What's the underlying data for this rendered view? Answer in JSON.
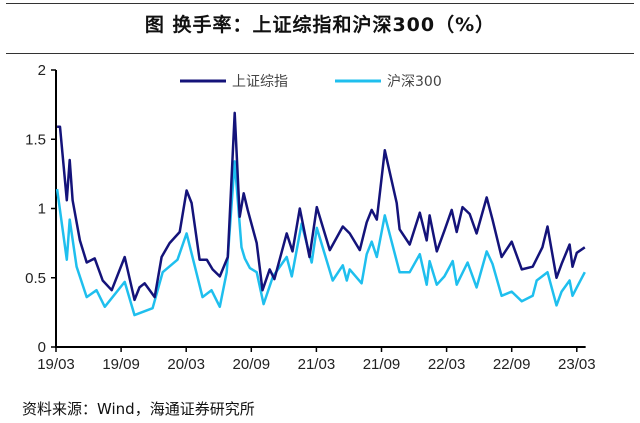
{
  "title": "图  换手率：上证综指和沪深300（%）",
  "source": "资料来源：Wind，海通证券研究所",
  "chart_data": {
    "type": "line",
    "title": "图  换手率：上证综指和沪深300（%）",
    "xlabel": "",
    "ylabel": "",
    "ylim": [
      0,
      2
    ],
    "yticks": [
      "0",
      "0.5",
      "1",
      "1.5",
      "2"
    ],
    "xlim": [
      "2019-03-01",
      "2023-04-01"
    ],
    "xticks": [
      {
        "date": "2019-03-01",
        "label": "19/03"
      },
      {
        "date": "2019-09-01",
        "label": "19/09"
      },
      {
        "date": "2020-03-01",
        "label": "20/03"
      },
      {
        "date": "2020-09-01",
        "label": "20/09"
      },
      {
        "date": "2021-03-01",
        "label": "21/03"
      },
      {
        "date": "2021-09-01",
        "label": "21/09"
      },
      {
        "date": "2022-03-01",
        "label": "22/03"
      },
      {
        "date": "2022-09-01",
        "label": "22/09"
      },
      {
        "date": "2023-03-01",
        "label": "23/03"
      }
    ],
    "grid": false,
    "legend": "top",
    "series": [
      {
        "name": "上证综指",
        "color": "#14137a",
        "points": [
          [
            "2019-03-04",
            1.59
          ],
          [
            "2019-03-12",
            1.59
          ],
          [
            "2019-04-01",
            1.06
          ],
          [
            "2019-04-09",
            1.35
          ],
          [
            "2019-04-17",
            1.06
          ],
          [
            "2019-05-07",
            0.77
          ],
          [
            "2019-05-26",
            0.61
          ],
          [
            "2019-06-18",
            0.64
          ],
          [
            "2019-07-10",
            0.48
          ],
          [
            "2019-08-05",
            0.41
          ],
          [
            "2019-09-11",
            0.65
          ],
          [
            "2019-10-08",
            0.34
          ],
          [
            "2019-10-22",
            0.43
          ],
          [
            "2019-11-06",
            0.46
          ],
          [
            "2019-12-04",
            0.36
          ],
          [
            "2019-12-23",
            0.65
          ],
          [
            "2020-01-15",
            0.75
          ],
          [
            "2020-02-13",
            0.83
          ],
          [
            "2020-03-02",
            1.13
          ],
          [
            "2020-03-16",
            1.04
          ],
          [
            "2020-04-08",
            0.63
          ],
          [
            "2020-04-28",
            0.63
          ],
          [
            "2020-05-14",
            0.56
          ],
          [
            "2020-06-04",
            0.51
          ],
          [
            "2020-06-26",
            0.65
          ],
          [
            "2020-07-15",
            1.69
          ],
          [
            "2020-07-29",
            0.94
          ],
          [
            "2020-08-10",
            1.11
          ],
          [
            "2020-08-21",
            0.99
          ],
          [
            "2020-09-16",
            0.75
          ],
          [
            "2020-10-02",
            0.41
          ],
          [
            "2020-10-22",
            0.56
          ],
          [
            "2020-11-05",
            0.49
          ],
          [
            "2020-12-09",
            0.82
          ],
          [
            "2020-12-25",
            0.69
          ],
          [
            "2021-01-15",
            1.0
          ],
          [
            "2021-02-12",
            0.65
          ],
          [
            "2021-03-02",
            1.01
          ],
          [
            "2021-04-08",
            0.7
          ],
          [
            "2021-05-14",
            0.87
          ],
          [
            "2021-06-03",
            0.82
          ],
          [
            "2021-07-01",
            0.7
          ],
          [
            "2021-07-20",
            0.9
          ],
          [
            "2021-08-04",
            0.99
          ],
          [
            "2021-08-18",
            0.92
          ],
          [
            "2021-09-10",
            1.42
          ],
          [
            "2021-10-13",
            1.04
          ],
          [
            "2021-10-21",
            0.85
          ],
          [
            "2021-11-19",
            0.74
          ],
          [
            "2021-12-17",
            0.97
          ],
          [
            "2022-01-06",
            0.77
          ],
          [
            "2022-01-14",
            0.95
          ],
          [
            "2022-02-04",
            0.69
          ],
          [
            "2022-02-25",
            0.84
          ],
          [
            "2022-03-15",
            0.99
          ],
          [
            "2022-03-29",
            0.83
          ],
          [
            "2022-04-15",
            1.01
          ],
          [
            "2022-05-05",
            0.96
          ],
          [
            "2022-05-24",
            0.82
          ],
          [
            "2022-06-22",
            1.08
          ],
          [
            "2022-07-08",
            0.92
          ],
          [
            "2022-08-03",
            0.65
          ],
          [
            "2022-09-01",
            0.76
          ],
          [
            "2022-09-29",
            0.56
          ],
          [
            "2022-10-29",
            0.58
          ],
          [
            "2022-11-26",
            0.72
          ],
          [
            "2022-12-10",
            0.87
          ],
          [
            "2023-01-05",
            0.5
          ],
          [
            "2023-01-19",
            0.6
          ],
          [
            "2023-02-11",
            0.74
          ],
          [
            "2023-02-19",
            0.58
          ],
          [
            "2023-03-01",
            0.68
          ],
          [
            "2023-03-23",
            0.72
          ]
        ]
      },
      {
        "name": "沪深300",
        "color": "#1fbfee",
        "points": [
          [
            "2019-03-04",
            1.14
          ],
          [
            "2019-04-01",
            0.63
          ],
          [
            "2019-04-09",
            0.92
          ],
          [
            "2019-04-28",
            0.58
          ],
          [
            "2019-05-26",
            0.36
          ],
          [
            "2019-06-23",
            0.41
          ],
          [
            "2019-07-16",
            0.29
          ],
          [
            "2019-09-11",
            0.47
          ],
          [
            "2019-10-08",
            0.23
          ],
          [
            "2019-11-28",
            0.28
          ],
          [
            "2019-12-26",
            0.54
          ],
          [
            "2020-02-07",
            0.63
          ],
          [
            "2020-03-02",
            0.82
          ],
          [
            "2020-04-16",
            0.36
          ],
          [
            "2020-05-11",
            0.41
          ],
          [
            "2020-06-04",
            0.29
          ],
          [
            "2020-06-23",
            0.54
          ],
          [
            "2020-07-15",
            1.34
          ],
          [
            "2020-08-04",
            0.72
          ],
          [
            "2020-08-13",
            0.64
          ],
          [
            "2020-08-27",
            0.57
          ],
          [
            "2020-09-16",
            0.54
          ],
          [
            "2020-10-05",
            0.31
          ],
          [
            "2020-11-01",
            0.51
          ],
          [
            "2020-12-09",
            0.65
          ],
          [
            "2020-12-23",
            0.51
          ],
          [
            "2021-01-20",
            0.89
          ],
          [
            "2021-02-18",
            0.61
          ],
          [
            "2021-03-02",
            0.86
          ],
          [
            "2021-04-16",
            0.48
          ],
          [
            "2021-05-14",
            0.59
          ],
          [
            "2021-05-25",
            0.48
          ],
          [
            "2021-06-03",
            0.56
          ],
          [
            "2021-07-06",
            0.46
          ],
          [
            "2021-07-20",
            0.67
          ],
          [
            "2021-08-04",
            0.76
          ],
          [
            "2021-08-18",
            0.65
          ],
          [
            "2021-09-10",
            0.95
          ],
          [
            "2021-10-21",
            0.54
          ],
          [
            "2021-11-19",
            0.54
          ],
          [
            "2021-12-17",
            0.67
          ],
          [
            "2022-01-06",
            0.45
          ],
          [
            "2022-01-14",
            0.62
          ],
          [
            "2022-02-04",
            0.45
          ],
          [
            "2022-02-25",
            0.51
          ],
          [
            "2022-03-18",
            0.62
          ],
          [
            "2022-03-29",
            0.45
          ],
          [
            "2022-04-29",
            0.61
          ],
          [
            "2022-05-24",
            0.43
          ],
          [
            "2022-06-22",
            0.69
          ],
          [
            "2022-07-08",
            0.6
          ],
          [
            "2022-08-03",
            0.37
          ],
          [
            "2022-09-01",
            0.4
          ],
          [
            "2022-09-29",
            0.33
          ],
          [
            "2022-10-29",
            0.37
          ],
          [
            "2022-11-10",
            0.48
          ],
          [
            "2022-12-10",
            0.54
          ],
          [
            "2023-01-05",
            0.3
          ],
          [
            "2023-01-19",
            0.4
          ],
          [
            "2023-02-11",
            0.48
          ],
          [
            "2023-02-19",
            0.37
          ],
          [
            "2023-03-01",
            0.43
          ],
          [
            "2023-03-23",
            0.54
          ]
        ]
      }
    ]
  }
}
